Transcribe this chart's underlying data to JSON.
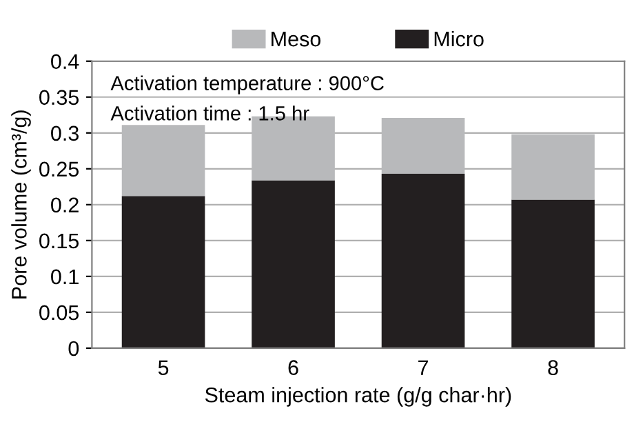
{
  "chart_data": {
    "type": "bar",
    "stacked": true,
    "xlabel": "Steam injection rate (g/g char·hr)",
    "ylabel": "Pore volume (cm³/g)",
    "categories": [
      "5",
      "6",
      "7",
      "8"
    ],
    "series": [
      {
        "name": "Micro",
        "color": "#231f20",
        "values": [
          0.212,
          0.234,
          0.243,
          0.207
        ]
      },
      {
        "name": "Meso",
        "color": "#b8b9bb",
        "values": [
          0.099,
          0.089,
          0.078,
          0.091
        ]
      }
    ],
    "ylim": [
      0,
      0.4
    ],
    "yticks": [
      0,
      0.05,
      0.1,
      0.15,
      0.2,
      0.25,
      0.3,
      0.35,
      0.4
    ],
    "grid": "y",
    "legend": "top",
    "annotations": [
      "Activation temperature : 900°C",
      "Activation time : 1.5 hr"
    ]
  }
}
